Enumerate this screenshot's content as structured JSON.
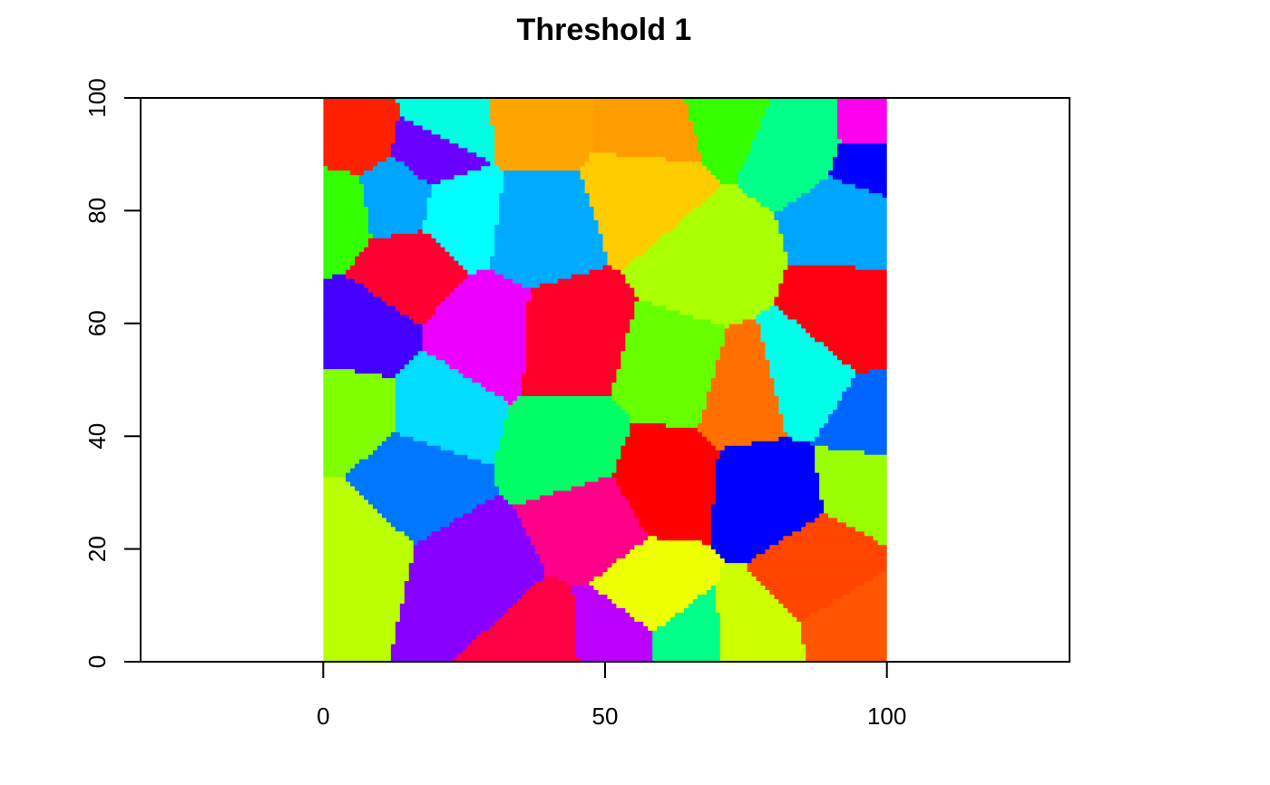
{
  "chart_data": {
    "type": "heatmap",
    "title": "Threshold 1",
    "xlabel": "",
    "ylabel": "",
    "xlim": [
      -32.4,
      132.4
    ],
    "ylim": [
      0,
      100
    ],
    "grid": false,
    "legend": "none",
    "xticks": [
      {
        "value": 0,
        "label": "0"
      },
      {
        "value": 50,
        "label": "50"
      },
      {
        "value": 100,
        "label": "100"
      }
    ],
    "yticks": [
      {
        "value": 0,
        "label": "0"
      },
      {
        "value": 20,
        "label": "20"
      },
      {
        "value": 40,
        "label": "40"
      },
      {
        "value": 60,
        "label": "60"
      },
      {
        "value": 80,
        "label": "80"
      },
      {
        "value": 100,
        "label": "100"
      }
    ],
    "regions": [
      {
        "x": 5,
        "y": 94,
        "color": "#ff2000"
      },
      {
        "x": 22,
        "y": 95,
        "color": "#00ffe0"
      },
      {
        "x": 20,
        "y": 91,
        "color": "#6a00ff"
      },
      {
        "x": 38,
        "y": 96,
        "color": "#ffa500"
      },
      {
        "x": 58,
        "y": 95,
        "color": "#ff9c00"
      },
      {
        "x": 72,
        "y": 99,
        "color": "#33ff00"
      },
      {
        "x": 84,
        "y": 94,
        "color": "#00ff88"
      },
      {
        "x": 99,
        "y": 95,
        "color": "#ff00ee"
      },
      {
        "x": 99,
        "y": 89,
        "color": "#0000ff"
      },
      {
        "x": 2,
        "y": 80,
        "color": "#33ff00"
      },
      {
        "x": 13,
        "y": 82,
        "color": "#00a5ff"
      },
      {
        "x": 24,
        "y": 80,
        "color": "#00ffff"
      },
      {
        "x": 38,
        "y": 78,
        "color": "#00aaff"
      },
      {
        "x": 57,
        "y": 84,
        "color": "#ffcc00"
      },
      {
        "x": 68,
        "y": 71,
        "color": "#aaff00"
      },
      {
        "x": 95,
        "y": 78,
        "color": "#00a5ff"
      },
      {
        "x": 15,
        "y": 70,
        "color": "#ff0033"
      },
      {
        "x": 7,
        "y": 58,
        "color": "#4400ff"
      },
      {
        "x": 28,
        "y": 58,
        "color": "#ee00ff"
      },
      {
        "x": 44,
        "y": 57,
        "color": "#ff0028"
      },
      {
        "x": 62,
        "y": 52,
        "color": "#66ff00"
      },
      {
        "x": 76,
        "y": 48,
        "color": "#ff7000"
      },
      {
        "x": 84,
        "y": 50,
        "color": "#00ffe8"
      },
      {
        "x": 94,
        "y": 62,
        "color": "#ff0010"
      },
      {
        "x": 98,
        "y": 41,
        "color": "#0066ff"
      },
      {
        "x": 5,
        "y": 45,
        "color": "#7fff00"
      },
      {
        "x": 20,
        "y": 45,
        "color": "#00ddff"
      },
      {
        "x": 44,
        "y": 38,
        "color": "#00ff66"
      },
      {
        "x": 16,
        "y": 33,
        "color": "#0077ff"
      },
      {
        "x": 4,
        "y": 20,
        "color": "#bbff00"
      },
      {
        "x": 27,
        "y": 15,
        "color": "#8800ff"
      },
      {
        "x": 48,
        "y": 25,
        "color": "#ff0088"
      },
      {
        "x": 60,
        "y": 32,
        "color": "#ff0000"
      },
      {
        "x": 79,
        "y": 30,
        "color": "#0000ff"
      },
      {
        "x": 97,
        "y": 33,
        "color": "#99ff00"
      },
      {
        "x": 88,
        "y": 16,
        "color": "#ff4500"
      },
      {
        "x": 58,
        "y": 12,
        "color": "#eeff00"
      },
      {
        "x": 38,
        "y": 3,
        "color": "#ff0044"
      },
      {
        "x": 52,
        "y": 4,
        "color": "#bb00ff"
      },
      {
        "x": 65,
        "y": 3,
        "color": "#00ff88"
      },
      {
        "x": 76,
        "y": 4,
        "color": "#ccff00"
      },
      {
        "x": 94,
        "y": 6,
        "color": "#ff5500"
      }
    ]
  }
}
